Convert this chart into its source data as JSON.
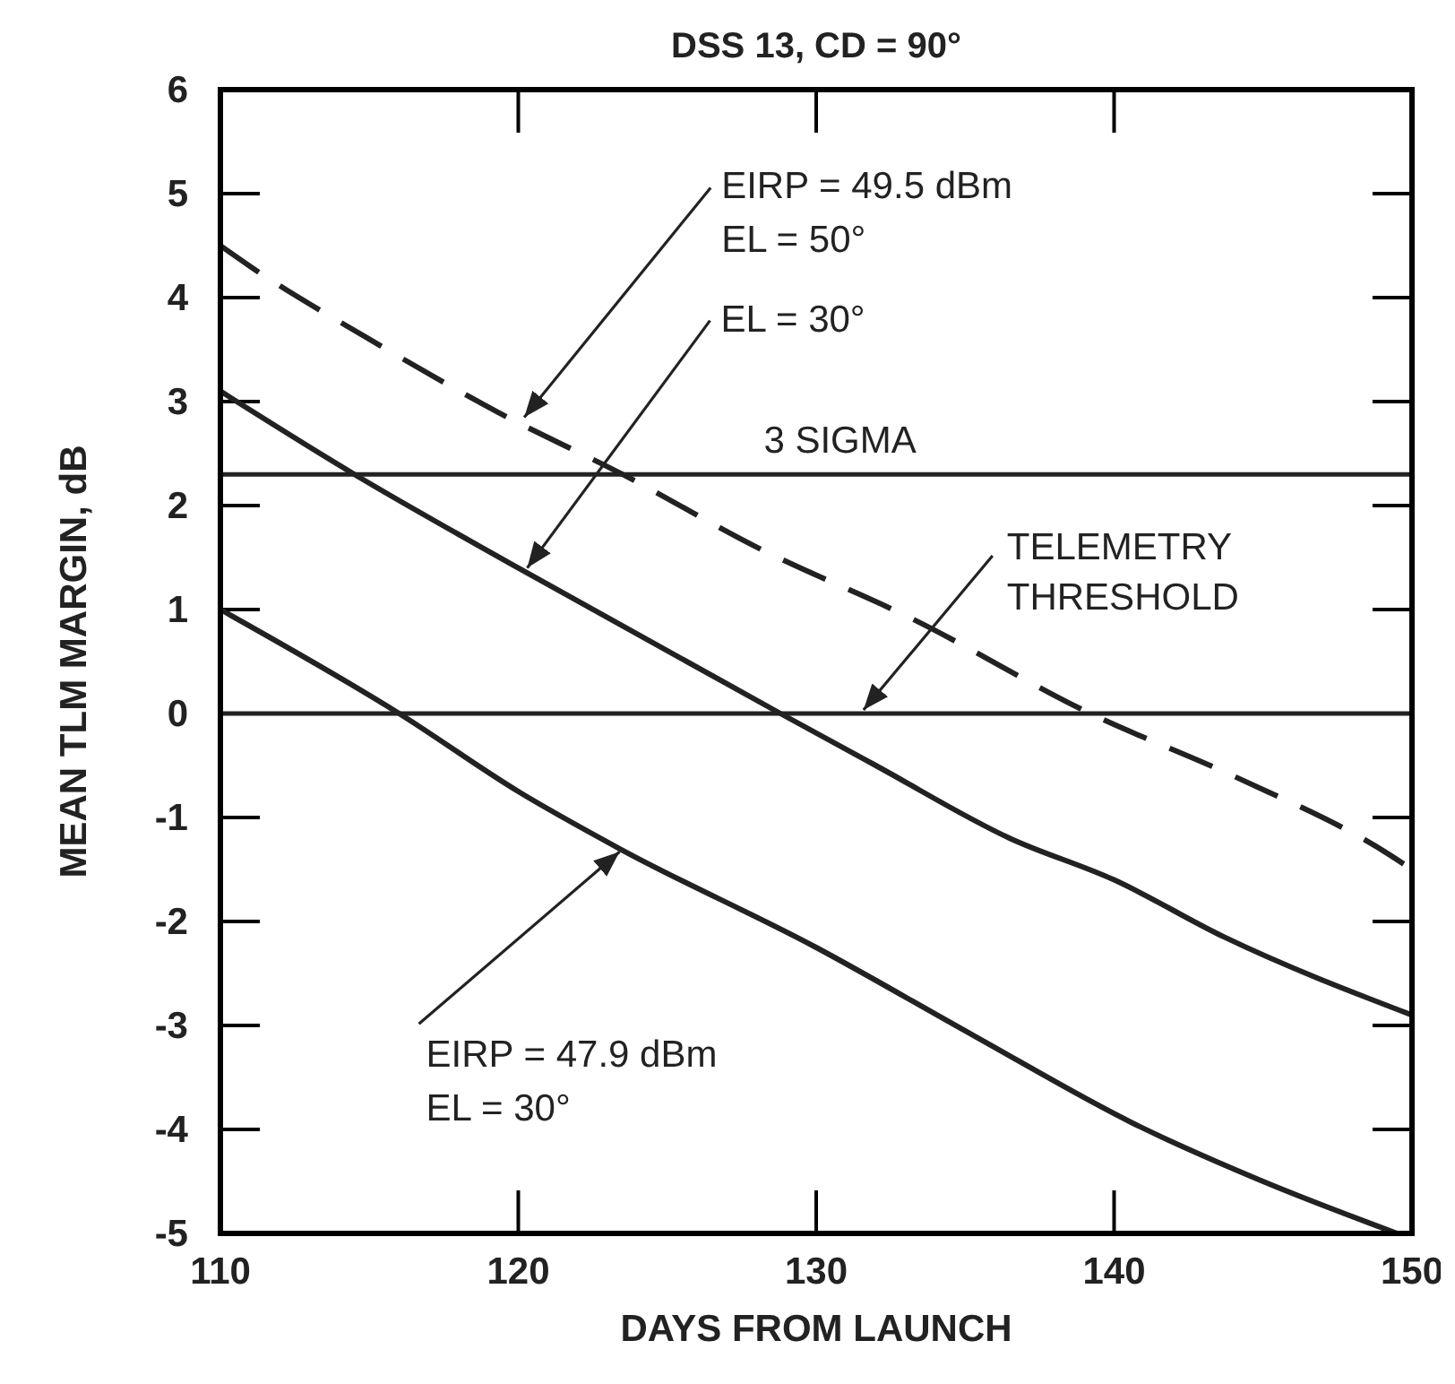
{
  "chart_data": {
    "type": "line",
    "title": "DSS 13, CD = 90°",
    "xlabel": "DAYS FROM LAUNCH",
    "ylabel": "MEAN TLM MARGIN, dB",
    "xlim": [
      110,
      150
    ],
    "xticks": [
      110,
      120,
      130,
      140,
      150
    ],
    "ylim": [
      -5,
      6
    ],
    "yticks": [
      -5,
      -4,
      -3,
      -2,
      -1,
      0,
      1,
      2,
      3,
      4,
      5,
      6
    ],
    "grid": false,
    "series": [
      {
        "color": "#222222",
        "line_style": "dashed",
        "x": [
          110,
          111,
          115,
          119.3,
          123.5,
          128,
          133.3,
          139.2,
          144,
          149.2,
          150
        ],
        "values": [
          4.5,
          4.3,
          3.6,
          2.9,
          2.3,
          1.6,
          0.9,
          0,
          -0.6,
          -1.35,
          -1.5
        ]
      },
      {
        "color": "#222222",
        "line_style": "solid",
        "x": [
          110,
          114.5,
          120,
          128.8,
          132,
          136.5,
          140,
          143.7,
          150
        ],
        "values": [
          3.1,
          2.3,
          1.4,
          0,
          -0.5,
          -1.2,
          -1.6,
          -2.15,
          -2.9
        ]
      },
      {
        "color": "#222222",
        "line_style": "solid",
        "x": [
          110,
          116,
          120,
          123.4,
          130,
          135.3,
          140.7,
          145,
          149.5
        ],
        "values": [
          1.0,
          0,
          -0.75,
          -1.3,
          -2.25,
          -3.1,
          -3.95,
          -4.5,
          -5.0
        ]
      }
    ],
    "ref_lines": [
      {
        "axis": "y",
        "value": 2.3,
        "label": "3 SIGMA",
        "color": "#222222"
      },
      {
        "axis": "y",
        "value": 0,
        "label": "TELEMETRY\nTHRESHOLD",
        "color": "#222222"
      }
    ],
    "annotations": [
      {
        "text": "EIRP = 49.5 dBm\nEL = 50°",
        "x": 120.2,
        "y": 2.85
      },
      {
        "text": "EL = 30°",
        "x": 120.3,
        "y": 1.4
      },
      {
        "text": "EIRP = 47.9 dBm\nEL = 30°",
        "x": 123.4,
        "y": -1.33
      }
    ]
  }
}
